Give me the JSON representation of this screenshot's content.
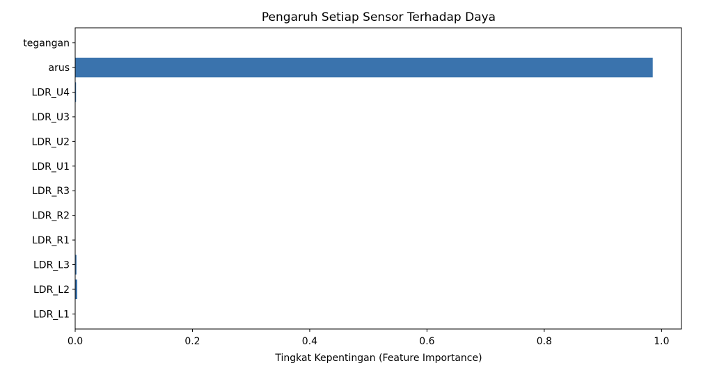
{
  "chart_data": {
    "type": "bar",
    "orientation": "horizontal",
    "title": "Pengaruh Setiap Sensor Terhadap Daya",
    "xlabel": "Tingkat Kepentingan (Feature Importance)",
    "ylabel": "",
    "categories": [
      "LDR_L1",
      "LDR_L2",
      "LDR_L3",
      "LDR_R1",
      "LDR_R2",
      "LDR_R3",
      "LDR_U1",
      "LDR_U2",
      "LDR_U3",
      "LDR_U4",
      "arus",
      "tegangan"
    ],
    "values": [
      0.0005,
      0.0035,
      0.0022,
      0.0003,
      0.0003,
      0.0002,
      0.0003,
      0.0003,
      0.0003,
      0.0015,
      0.985,
      0.0004
    ],
    "xlim": [
      0.0,
      1.034
    ],
    "xticks": [
      0.0,
      0.2,
      0.4,
      0.6,
      0.8,
      1.0
    ],
    "xtick_labels": [
      "0.0",
      "0.2",
      "0.4",
      "0.6",
      "0.8",
      "1.0"
    ],
    "grid": false,
    "bar_color": "#3a73ad"
  }
}
